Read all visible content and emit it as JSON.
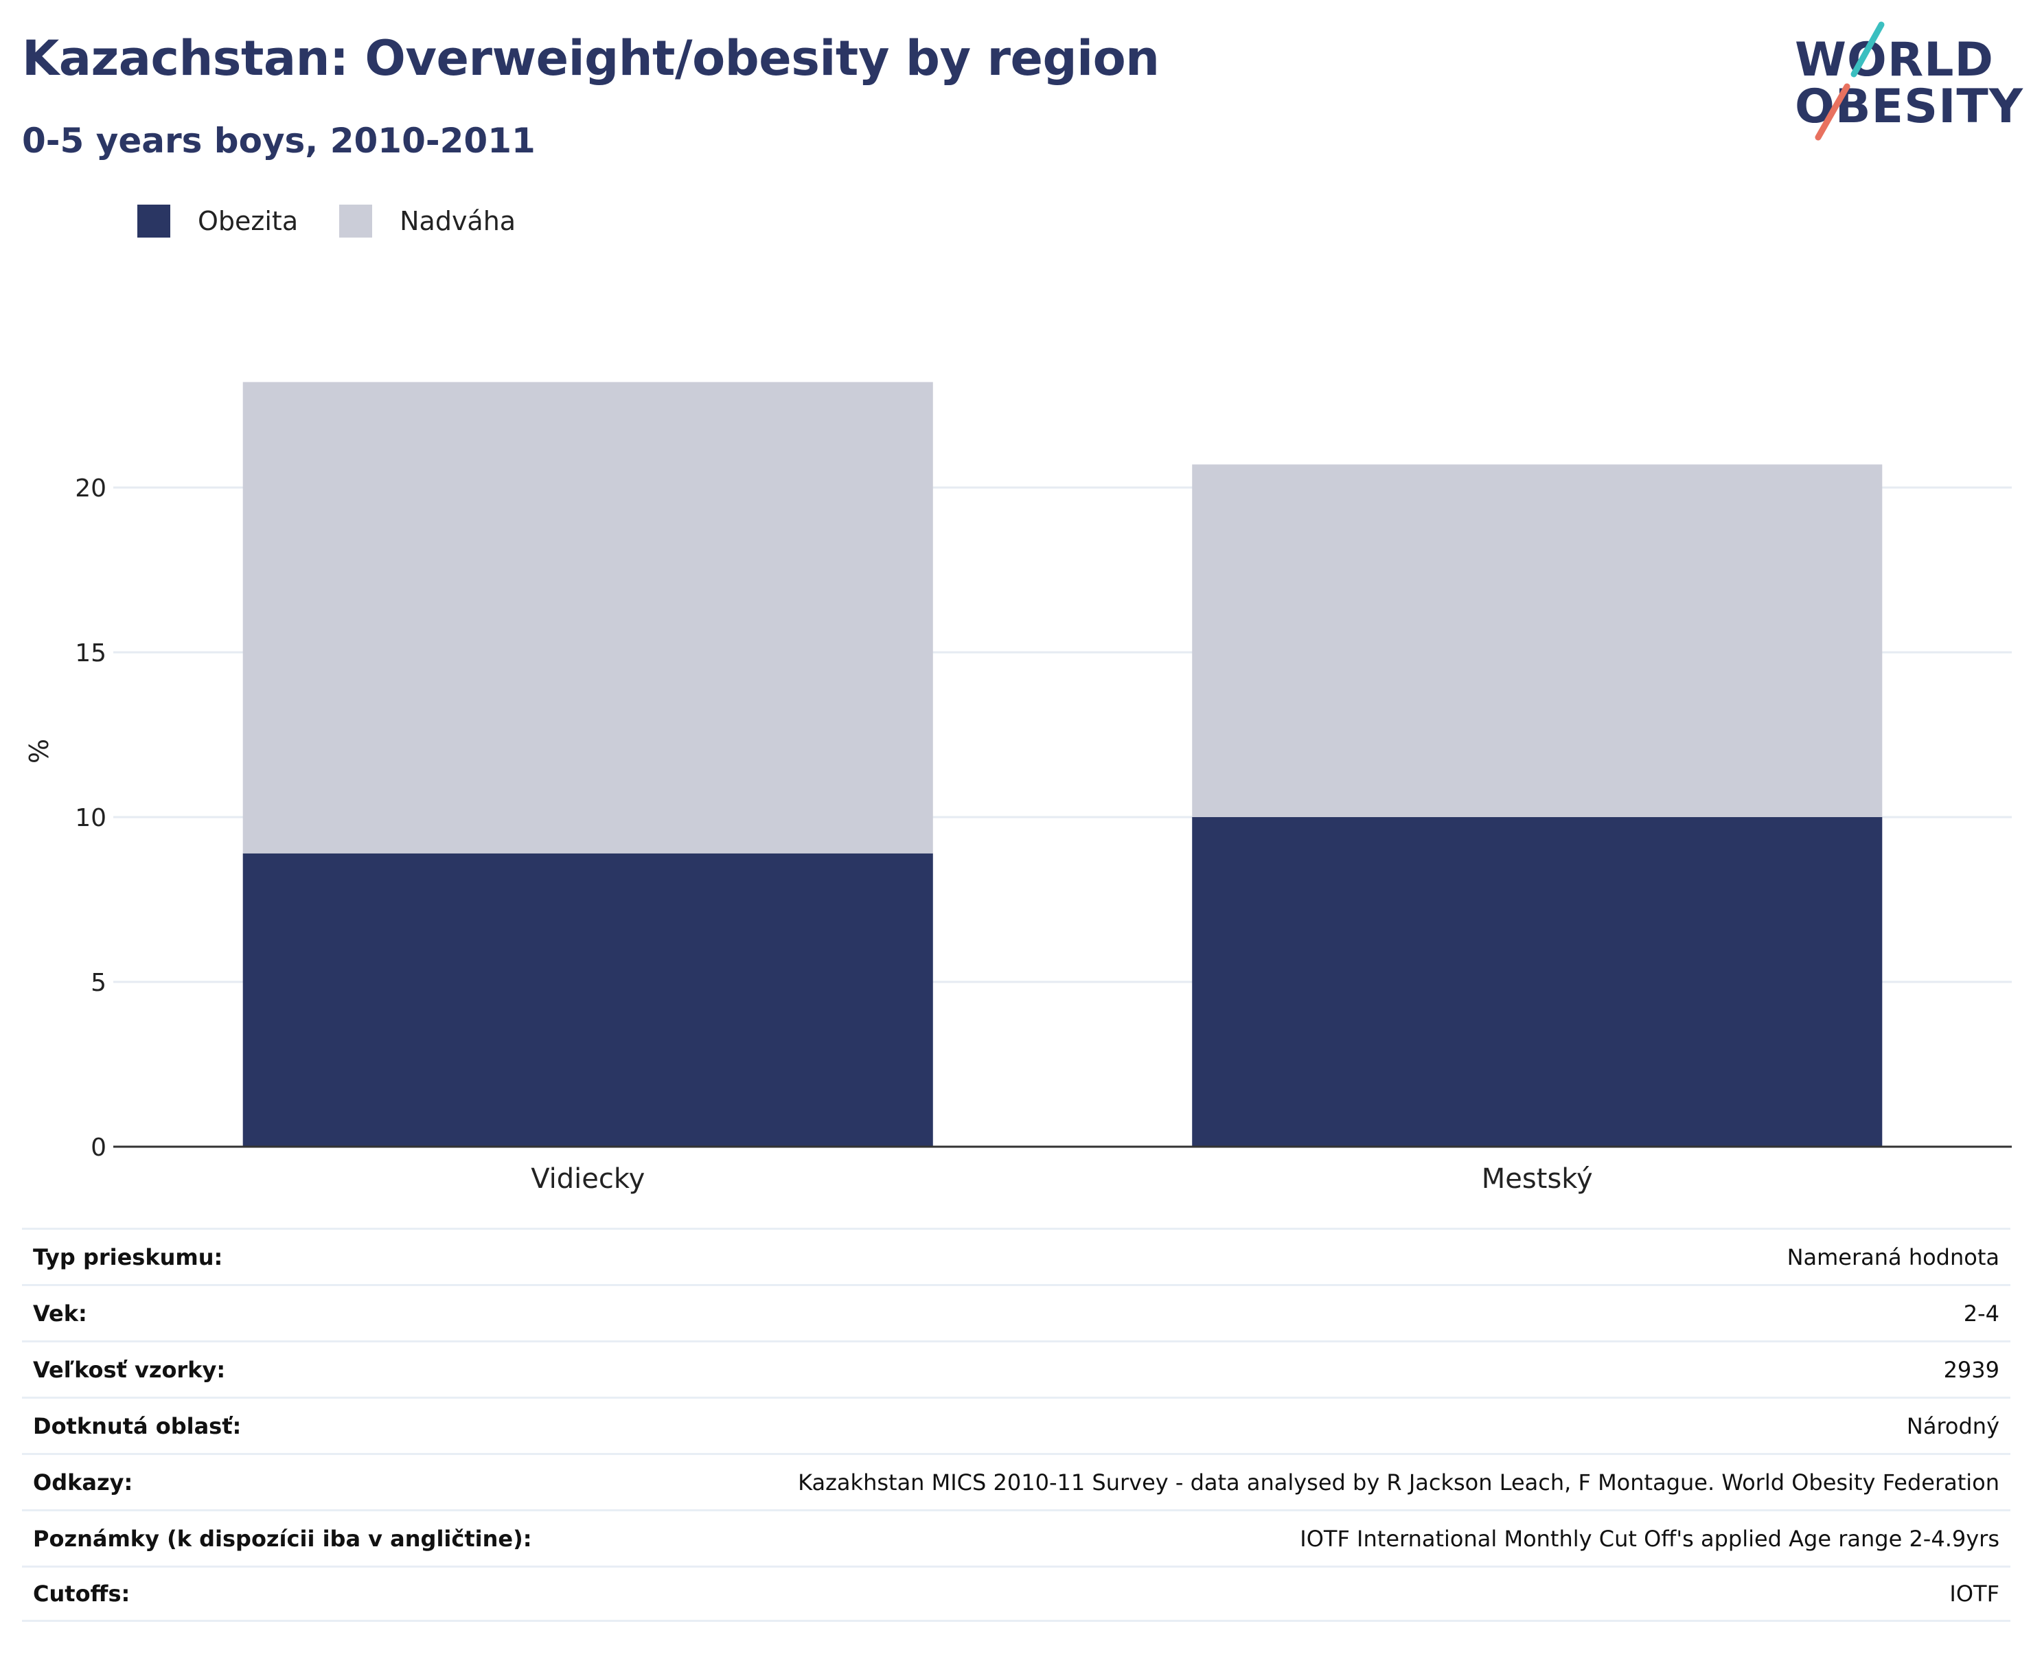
{
  "header": {
    "title": "Kazachstan: Overweight/obesity by region",
    "subtitle": "0-5 years boys, 2010-2011"
  },
  "logo": {
    "line1": "WORLD",
    "line2": "OBESITY",
    "colors": {
      "text": "#2b3664",
      "slash_top": "#3bbfc0",
      "slash_bottom": "#e8715f"
    }
  },
  "colors": {
    "obezita": "#2a3663",
    "nadvaha": "#cbcdd8",
    "grid": "#e6ebf2",
    "axis": "#333333"
  },
  "legend": [
    {
      "label": "Obezita",
      "color": "#2a3663"
    },
    {
      "label": "Nadváha",
      "color": "#cbcdd8"
    }
  ],
  "chart_data": {
    "type": "bar",
    "stacked": true,
    "categories": [
      "Vidiecky",
      "Mestský"
    ],
    "series": [
      {
        "name": "Obezita",
        "values": [
          8.9,
          10.0
        ]
      },
      {
        "name": "Nadváha",
        "values": [
          14.3,
          10.7
        ]
      }
    ],
    "ylabel": "%",
    "ylim": [
      0,
      25
    ],
    "yticks": [
      0,
      5,
      10,
      15,
      20
    ],
    "grid": true,
    "legend_position": "top-left"
  },
  "meta": [
    {
      "key": "Typ prieskumu:",
      "value": "Nameraná hodnota"
    },
    {
      "key": "Vek:",
      "value": "2-4"
    },
    {
      "key": "Veľkosť vzorky:",
      "value": "2939"
    },
    {
      "key": "Dotknutá oblasť:",
      "value": "Národný"
    },
    {
      "key": "Odkazy:",
      "value": "Kazakhstan MICS 2010-11 Survey - data analysed by R Jackson Leach, F Montague. World Obesity Federation"
    },
    {
      "key": "Poznámky (k dispozícii iba v angličtine):",
      "value": "IOTF International Monthly Cut Off's applied Age range 2-4.9yrs"
    },
    {
      "key": "Cutoffs:",
      "value": "IOTF"
    }
  ]
}
